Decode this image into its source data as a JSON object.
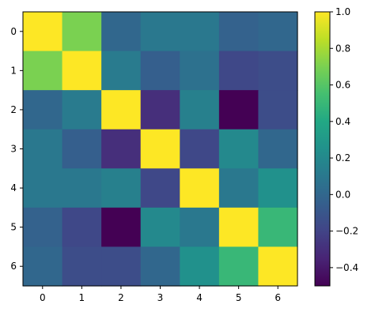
{
  "chart_data": {
    "type": "heatmap",
    "title": "",
    "xlabel": "",
    "ylabel": "",
    "x_tick_labels": [
      "0",
      "1",
      "2",
      "3",
      "4",
      "5",
      "6"
    ],
    "y_tick_labels": [
      "0",
      "1",
      "2",
      "3",
      "4",
      "5",
      "6"
    ],
    "matrix": [
      [
        1.0,
        0.7,
        0.0,
        0.1,
        0.1,
        -0.03,
        0.0
      ],
      [
        0.7,
        1.0,
        0.12,
        -0.05,
        0.06,
        -0.18,
        -0.15
      ],
      [
        0.0,
        0.12,
        1.0,
        -0.3,
        0.15,
        -0.5,
        -0.15
      ],
      [
        0.1,
        -0.05,
        -0.3,
        1.0,
        -0.18,
        0.2,
        0.0
      ],
      [
        0.1,
        0.1,
        0.15,
        -0.18,
        1.0,
        0.1,
        0.25
      ],
      [
        -0.03,
        -0.18,
        -0.5,
        0.2,
        0.1,
        1.0,
        0.5
      ],
      [
        0.0,
        -0.15,
        -0.15,
        0.0,
        0.25,
        0.5,
        1.0
      ]
    ],
    "colormap": "viridis",
    "colorbar": {
      "min": -0.5,
      "max": 1.0,
      "tick_values": [
        -0.4,
        -0.2,
        0.0,
        0.2,
        0.4,
        0.6,
        0.8,
        1.0
      ],
      "tick_labels": [
        "−0.4",
        "−0.2",
        "0.0",
        "0.2",
        "0.4",
        "0.6",
        "0.8",
        "1.0"
      ]
    },
    "grid": false,
    "legend": "none"
  }
}
